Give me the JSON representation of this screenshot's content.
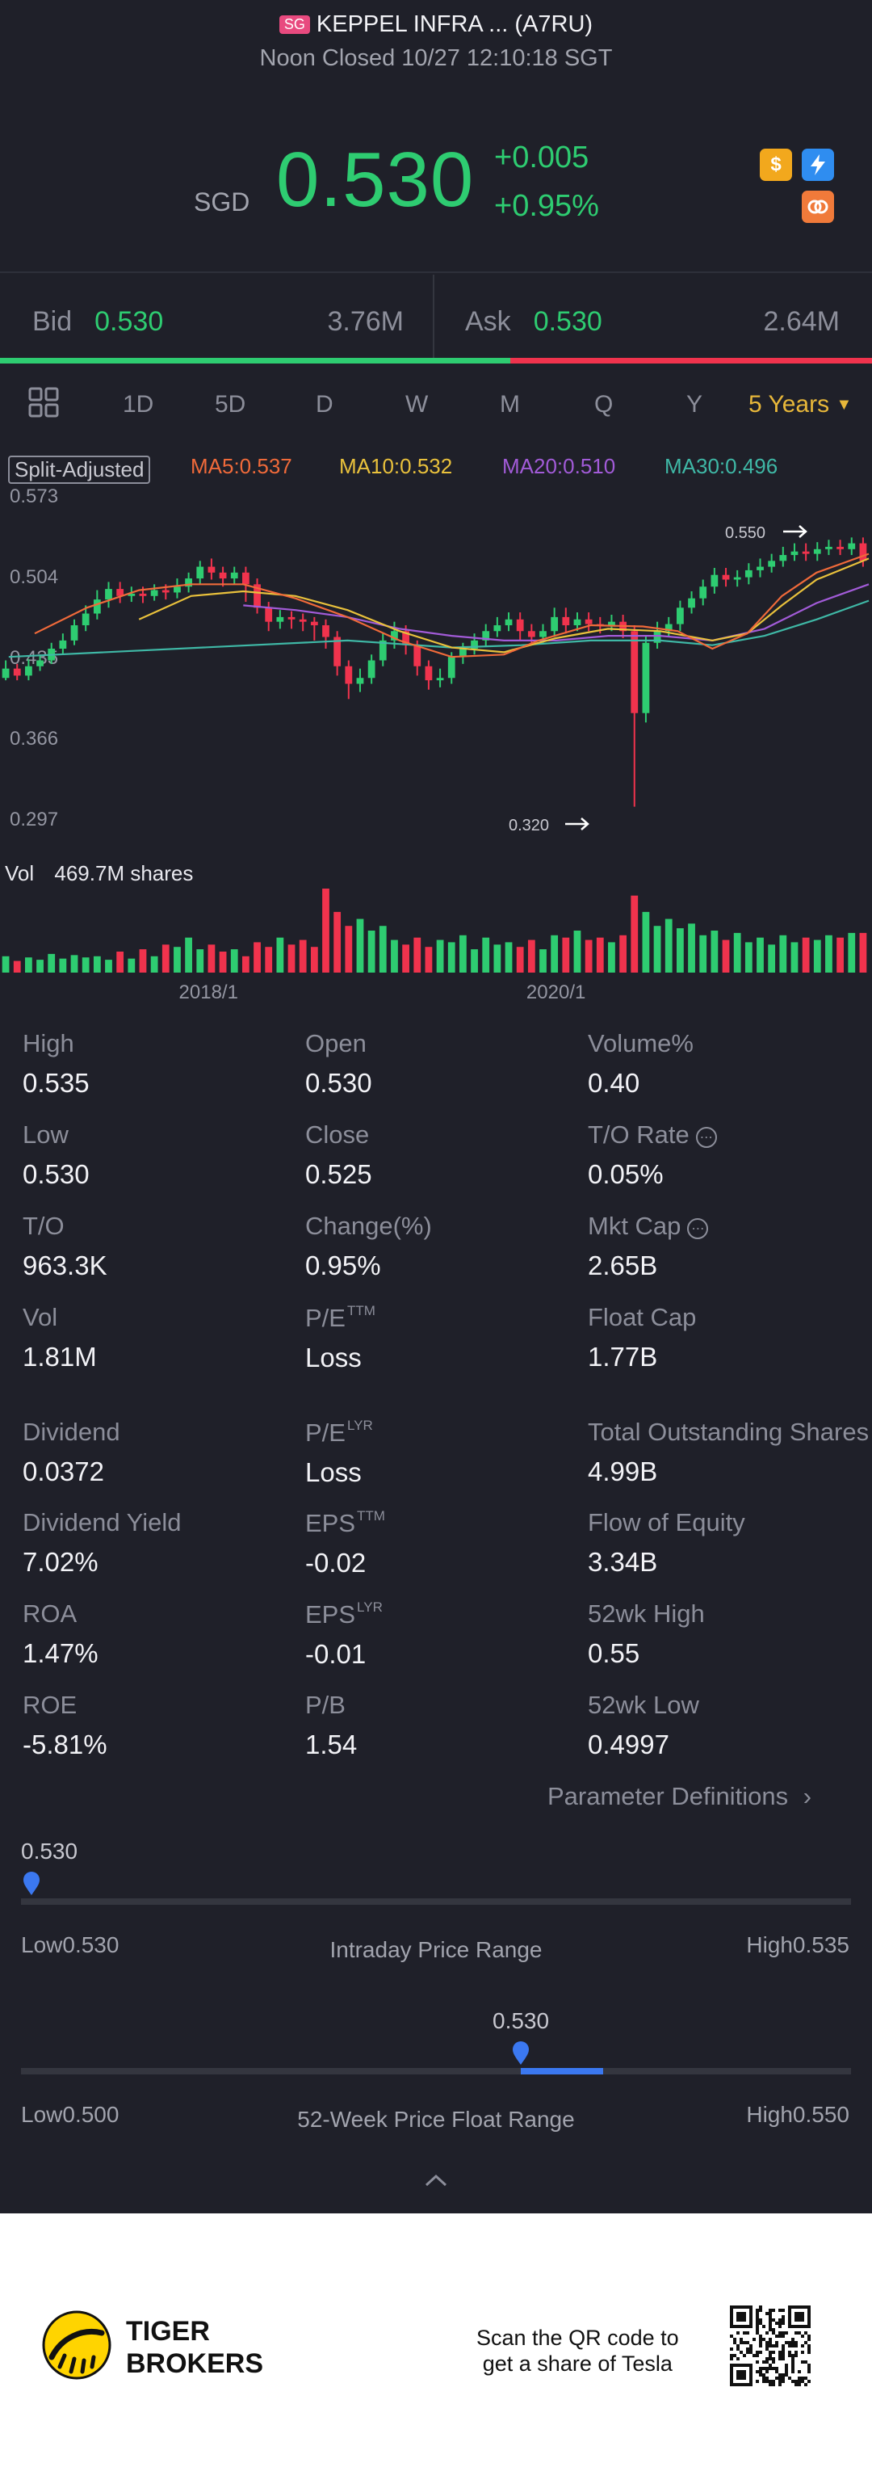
{
  "header": {
    "badge": "SG",
    "title": "KEPPEL INFRA ... (A7RU)",
    "status": "Noon Closed 10/27 12:10:18 SGT"
  },
  "quote": {
    "currency": "SGD",
    "price": "0.530",
    "change": "+0.005",
    "change_pct": "+0.95%",
    "icons": [
      "dollar-icon",
      "lightning-icon",
      "exchange-icon"
    ]
  },
  "bidask": {
    "bid_label": "Bid",
    "bid_price": "0.530",
    "bid_size": "3.76M",
    "ask_label": "Ask",
    "ask_price": "0.530",
    "ask_size": "2.64M",
    "bid_share": 0.585
  },
  "timeframes": {
    "items": [
      "1D",
      "5D",
      "D",
      "W",
      "M",
      "Q",
      "Y"
    ],
    "active": "5 Years"
  },
  "chart_legend": {
    "split": "Split-Adjusted",
    "ma5": "MA5:0.537",
    "ma10": "MA10:0.532",
    "ma20": "MA20:0.510",
    "ma30": "MA30:0.496",
    "vol_label": "Vol",
    "vol_value": "469.7M shares",
    "high_marker": "0.550",
    "low_marker": "0.320"
  },
  "colors": {
    "up": "#2ecc71",
    "down": "#f0334d",
    "neutral": "#8f92a3",
    "ma5": "#f06a3a",
    "ma10": "#e9c13c",
    "ma20": "#a25bd8",
    "ma30": "#3fb8a6",
    "active": "#e7b73a",
    "range_marker": "#3b78f0"
  },
  "chart_data": {
    "type": "candlestick",
    "y_ticks": [
      "0.573",
      "0.504",
      "0.435",
      "0.366",
      "0.297"
    ],
    "ylim": [
      0.297,
      0.573
    ],
    "x_ticks": [
      "2018/1",
      "2020/1"
    ],
    "candles": [
      [
        0.43,
        0.438,
        0.445,
        0.428
      ],
      [
        0.438,
        0.432,
        0.442,
        0.428
      ],
      [
        0.432,
        0.44,
        0.446,
        0.428
      ],
      [
        0.44,
        0.445,
        0.45,
        0.436
      ],
      [
        0.445,
        0.455,
        0.46,
        0.442
      ],
      [
        0.455,
        0.462,
        0.468,
        0.45
      ],
      [
        0.462,
        0.475,
        0.48,
        0.458
      ],
      [
        0.475,
        0.485,
        0.492,
        0.47
      ],
      [
        0.485,
        0.497,
        0.505,
        0.48
      ],
      [
        0.497,
        0.506,
        0.512,
        0.49
      ],
      [
        0.506,
        0.5,
        0.512,
        0.494
      ],
      [
        0.5,
        0.502,
        0.508,
        0.495
      ],
      [
        0.502,
        0.5,
        0.508,
        0.494
      ],
      [
        0.5,
        0.505,
        0.51,
        0.496
      ],
      [
        0.505,
        0.503,
        0.51,
        0.497
      ],
      [
        0.503,
        0.508,
        0.515,
        0.498
      ],
      [
        0.508,
        0.515,
        0.52,
        0.503
      ],
      [
        0.515,
        0.525,
        0.53,
        0.51
      ],
      [
        0.525,
        0.52,
        0.532,
        0.514
      ],
      [
        0.52,
        0.515,
        0.525,
        0.508
      ],
      [
        0.515,
        0.52,
        0.525,
        0.51
      ],
      [
        0.52,
        0.51,
        0.525,
        0.495
      ],
      [
        0.51,
        0.49,
        0.515,
        0.485
      ],
      [
        0.49,
        0.478,
        0.495,
        0.47
      ],
      [
        0.478,
        0.482,
        0.488,
        0.472
      ],
      [
        0.482,
        0.48,
        0.487,
        0.472
      ],
      [
        0.48,
        0.478,
        0.485,
        0.47
      ],
      [
        0.478,
        0.475,
        0.482,
        0.462
      ],
      [
        0.475,
        0.465,
        0.48,
        0.455
      ],
      [
        0.465,
        0.44,
        0.47,
        0.432
      ],
      [
        0.44,
        0.425,
        0.445,
        0.412
      ],
      [
        0.425,
        0.43,
        0.438,
        0.418
      ],
      [
        0.43,
        0.445,
        0.45,
        0.425
      ],
      [
        0.445,
        0.462,
        0.468,
        0.44
      ],
      [
        0.462,
        0.47,
        0.478,
        0.455
      ],
      [
        0.47,
        0.458,
        0.475,
        0.45
      ],
      [
        0.458,
        0.44,
        0.462,
        0.432
      ],
      [
        0.44,
        0.428,
        0.445,
        0.42
      ],
      [
        0.428,
        0.43,
        0.438,
        0.422
      ],
      [
        0.43,
        0.448,
        0.452,
        0.425
      ],
      [
        0.448,
        0.455,
        0.46,
        0.442
      ],
      [
        0.455,
        0.462,
        0.468,
        0.45
      ],
      [
        0.462,
        0.47,
        0.476,
        0.457
      ],
      [
        0.47,
        0.475,
        0.482,
        0.465
      ],
      [
        0.475,
        0.48,
        0.486,
        0.47
      ],
      [
        0.48,
        0.47,
        0.486,
        0.462
      ],
      [
        0.47,
        0.465,
        0.476,
        0.458
      ],
      [
        0.465,
        0.47,
        0.476,
        0.46
      ],
      [
        0.47,
        0.482,
        0.49,
        0.465
      ],
      [
        0.482,
        0.475,
        0.49,
        0.468
      ],
      [
        0.475,
        0.48,
        0.486,
        0.47
      ],
      [
        0.48,
        0.476,
        0.486,
        0.47
      ],
      [
        0.476,
        0.475,
        0.482,
        0.468
      ],
      [
        0.475,
        0.478,
        0.484,
        0.47
      ],
      [
        0.478,
        0.47,
        0.484,
        0.464
      ],
      [
        0.47,
        0.4,
        0.475,
        0.32
      ],
      [
        0.4,
        0.46,
        0.466,
        0.392
      ],
      [
        0.46,
        0.47,
        0.478,
        0.455
      ],
      [
        0.47,
        0.476,
        0.482,
        0.465
      ],
      [
        0.476,
        0.49,
        0.496,
        0.47
      ],
      [
        0.49,
        0.498,
        0.504,
        0.485
      ],
      [
        0.498,
        0.508,
        0.514,
        0.492
      ],
      [
        0.508,
        0.518,
        0.524,
        0.502
      ],
      [
        0.518,
        0.514,
        0.524,
        0.508
      ],
      [
        0.514,
        0.516,
        0.522,
        0.508
      ],
      [
        0.516,
        0.522,
        0.528,
        0.51
      ],
      [
        0.522,
        0.525,
        0.532,
        0.516
      ],
      [
        0.525,
        0.53,
        0.536,
        0.52
      ],
      [
        0.53,
        0.535,
        0.542,
        0.525
      ],
      [
        0.535,
        0.538,
        0.545,
        0.53
      ],
      [
        0.538,
        0.536,
        0.545,
        0.53
      ],
      [
        0.536,
        0.54,
        0.546,
        0.53
      ],
      [
        0.54,
        0.542,
        0.548,
        0.535
      ],
      [
        0.542,
        0.54,
        0.548,
        0.535
      ],
      [
        0.54,
        0.545,
        0.55,
        0.535
      ],
      [
        0.545,
        0.53,
        0.55,
        0.525
      ]
    ],
    "volume": [
      14,
      10,
      13,
      11,
      16,
      12,
      15,
      13,
      14,
      11,
      18,
      12,
      20,
      14,
      24,
      22,
      30,
      20,
      24,
      18,
      20,
      14,
      26,
      22,
      30,
      24,
      28,
      22,
      72,
      52,
      40,
      46,
      36,
      40,
      28,
      24,
      30,
      22,
      28,
      26,
      32,
      20,
      30,
      24,
      26,
      22,
      28,
      20,
      32,
      30,
      36,
      28,
      30,
      26,
      32,
      66,
      52,
      40,
      46,
      38,
      42,
      32,
      36,
      28,
      34,
      26,
      30,
      24,
      32,
      26,
      30,
      28,
      32,
      30,
      34,
      34
    ],
    "ma5": [
      [
        0.04,
        0.468
      ],
      [
        0.1,
        0.49
      ],
      [
        0.16,
        0.505
      ],
      [
        0.22,
        0.51
      ],
      [
        0.28,
        0.51
      ],
      [
        0.34,
        0.498
      ],
      [
        0.4,
        0.482
      ],
      [
        0.46,
        0.462
      ],
      [
        0.52,
        0.448
      ],
      [
        0.58,
        0.45
      ],
      [
        0.62,
        0.462
      ],
      [
        0.68,
        0.475
      ],
      [
        0.74,
        0.474
      ],
      [
        0.78,
        0.47
      ],
      [
        0.82,
        0.455
      ],
      [
        0.86,
        0.468
      ],
      [
        0.9,
        0.5
      ],
      [
        0.94,
        0.52
      ],
      [
        1.0,
        0.536
      ]
    ],
    "ma10": [
      [
        0.16,
        0.48
      ],
      [
        0.22,
        0.5
      ],
      [
        0.28,
        0.504
      ],
      [
        0.34,
        0.5
      ],
      [
        0.4,
        0.488
      ],
      [
        0.46,
        0.47
      ],
      [
        0.52,
        0.456
      ],
      [
        0.58,
        0.452
      ],
      [
        0.64,
        0.464
      ],
      [
        0.7,
        0.472
      ],
      [
        0.76,
        0.47
      ],
      [
        0.82,
        0.462
      ],
      [
        0.86,
        0.468
      ],
      [
        0.9,
        0.492
      ],
      [
        0.94,
        0.514
      ],
      [
        1.0,
        0.532
      ]
    ],
    "ma20": [
      [
        0.28,
        0.492
      ],
      [
        0.34,
        0.488
      ],
      [
        0.4,
        0.482
      ],
      [
        0.46,
        0.472
      ],
      [
        0.52,
        0.466
      ],
      [
        0.58,
        0.462
      ],
      [
        0.64,
        0.462
      ],
      [
        0.7,
        0.466
      ],
      [
        0.76,
        0.466
      ],
      [
        0.82,
        0.462
      ],
      [
        0.88,
        0.472
      ],
      [
        0.94,
        0.494
      ],
      [
        1.0,
        0.51
      ]
    ],
    "ma30": [
      [
        0.01,
        0.448
      ],
      [
        0.4,
        0.462
      ],
      [
        0.52,
        0.456
      ],
      [
        0.6,
        0.458
      ],
      [
        0.68,
        0.462
      ],
      [
        0.76,
        0.462
      ],
      [
        0.82,
        0.458
      ],
      [
        0.88,
        0.466
      ],
      [
        0.94,
        0.48
      ],
      [
        1.0,
        0.496
      ]
    ]
  },
  "stats": [
    {
      "label": "High",
      "value": "0.535"
    },
    {
      "label": "Open",
      "value": "0.530"
    },
    {
      "label": "Volume%",
      "value": "0.40"
    },
    {
      "label": "Low",
      "value": "0.530"
    },
    {
      "label": "Close",
      "value": "0.525"
    },
    {
      "label": "T/O Rate",
      "value": "0.05%",
      "info": true
    },
    {
      "label": "T/O",
      "value": "963.3K"
    },
    {
      "label": "Change(%)",
      "value": "0.95%"
    },
    {
      "label": "Mkt Cap",
      "value": "2.65B",
      "info": true
    },
    {
      "label": "Vol",
      "value": "1.81M"
    },
    {
      "label": "P/E",
      "sup": "TTM",
      "value": "Loss"
    },
    {
      "label": "Float Cap",
      "value": "1.77B"
    },
    {
      "label": "Dividend",
      "value": "0.0372"
    },
    {
      "label": "P/E",
      "sup": "LYR",
      "value": "Loss"
    },
    {
      "label": "Total Outstanding Shares",
      "value": "4.99B"
    },
    {
      "label": "Dividend Yield",
      "value": "7.02%"
    },
    {
      "label": "EPS",
      "sup": "TTM",
      "value": "-0.02"
    },
    {
      "label": "Flow of Equity",
      "value": "3.34B"
    },
    {
      "label": "ROA",
      "value": "1.47%"
    },
    {
      "label": "EPS",
      "sup": "LYR",
      "value": "-0.01"
    },
    {
      "label": "52wk High",
      "value": "0.55"
    },
    {
      "label": "ROE",
      "value": "-5.81%"
    },
    {
      "label": "P/B",
      "value": "1.54"
    },
    {
      "label": "52wk Low",
      "value": "0.4997"
    }
  ],
  "param_link": "Parameter Definitions",
  "intraday": {
    "current": "0.530",
    "low": "Low0.530",
    "high": "High0.535",
    "title": "Intraday Price Range",
    "position": 0.0
  },
  "week52": {
    "current": "0.530",
    "low": "Low0.500",
    "high": "High0.550",
    "title": "52-Week Price Float Range",
    "position": 0.6
  },
  "footer": {
    "brand_line1": "TIGER",
    "brand_line2": "BROKERS",
    "qr_line1": "Scan the QR code to",
    "qr_line2": "get a share of Tesla"
  }
}
